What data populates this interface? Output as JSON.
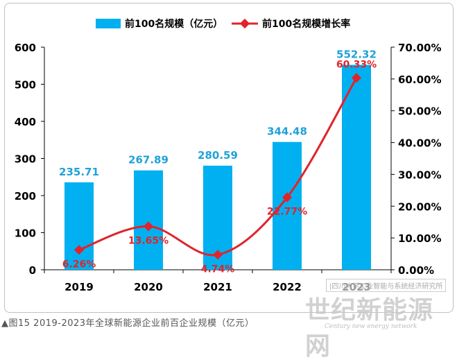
{
  "chart_data": {
    "type": "bar",
    "categories": [
      "2019",
      "2020",
      "2021",
      "2022",
      "2023"
    ],
    "series": [
      {
        "name": "前100名规模（亿元）",
        "type": "bar",
        "axis": "left",
        "values": [
          235.71,
          267.89,
          280.59,
          344.48,
          552.32
        ],
        "labels": [
          "235.71",
          "267.89",
          "280.59",
          "344.48",
          "552.32"
        ],
        "color": "#00b0f0"
      },
      {
        "name": "前100名规模增长率",
        "type": "line",
        "axis": "right",
        "values": [
          6.26,
          13.65,
          4.74,
          22.77,
          60.33
        ],
        "labels": [
          "6.26%",
          "13.65%",
          "4.74%",
          "22.77%",
          "60.33%"
        ],
        "color": "#e0242b"
      }
    ],
    "y_left": {
      "min": 0,
      "max": 600,
      "ticks": [
        "0",
        "100",
        "200",
        "300",
        "400",
        "500",
        "600"
      ]
    },
    "y_right": {
      "min": 0,
      "max": 70,
      "ticks": [
        "0.00%",
        "10.00%",
        "20.00%",
        "30.00%",
        "40.00%",
        "50.00%",
        "60.00%",
        "70.00%"
      ]
    },
    "legend": "top",
    "grid": false
  },
  "caption": "▲图15 2019-2023年全球新能源企业前百企业规模（亿元）",
  "watermark": {
    "text": "|四川大学工业智能与系统经济研究所",
    "logo": "世纪新能源网",
    "logo_sub": "Century new energy network"
  }
}
